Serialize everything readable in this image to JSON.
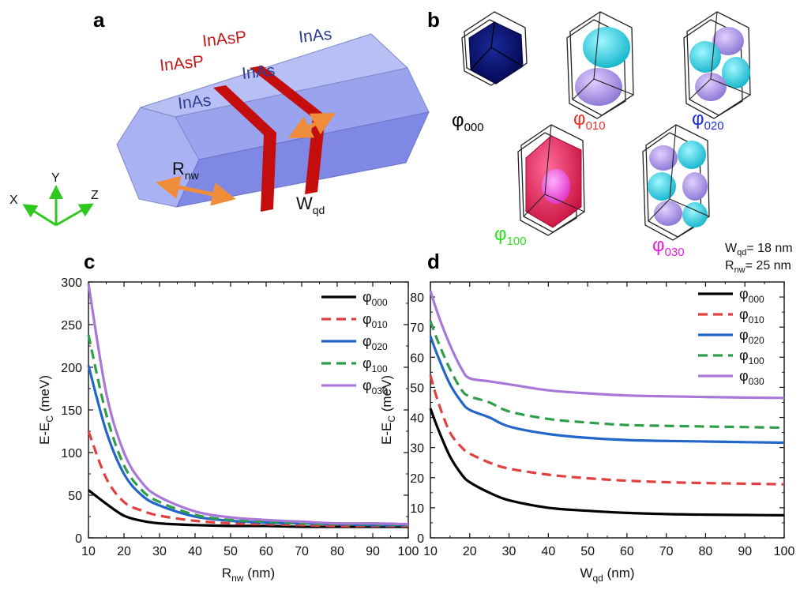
{
  "panels": {
    "a": {
      "letter": "a",
      "layer_labels": [
        "InAsP",
        "InAsP",
        "InAs",
        "InAs",
        "InAs"
      ],
      "radius_symbol": "R",
      "radius_sub": "nw",
      "width_symbol": "W",
      "width_sub": "qd",
      "axes": {
        "x": "X",
        "y": "Y",
        "z": "Z"
      },
      "colors": {
        "inas_text": "#2e3d8f",
        "inasp_text": "#c41a1a",
        "band": "#c40d0d",
        "arrow": "#f08d3b",
        "triad": "#2fc81f"
      }
    },
    "b": {
      "letter": "b",
      "states": [
        {
          "symbol": "φ",
          "sub": "000",
          "color": "#000000"
        },
        {
          "symbol": "φ",
          "sub": "010",
          "color": "#e8302a"
        },
        {
          "symbol": "φ",
          "sub": "020",
          "color": "#1b2cd6"
        },
        {
          "symbol": "φ",
          "sub": "100",
          "color": "#2ee020"
        },
        {
          "symbol": "φ",
          "sub": "030",
          "color": "#e020d8"
        }
      ],
      "params": [
        {
          "symbol": "W",
          "sub": "qd",
          "value": "= 18 nm"
        },
        {
          "symbol": "R",
          "sub": "nw",
          "value": "= 25 nm"
        }
      ]
    },
    "c": {
      "letter": "c"
    },
    "d": {
      "letter": "d"
    }
  },
  "chart_data": [
    {
      "panel": "c",
      "type": "line",
      "xlabel": "R",
      "xlabel_sub": "nw",
      "xlabel_unit": "(nm)",
      "ylabel": "E-E",
      "ylabel_sub": "C",
      "ylabel_unit": "(meV)",
      "xlim": [
        10,
        100
      ],
      "ylim": [
        0,
        300
      ],
      "xticks": [
        10,
        20,
        30,
        40,
        50,
        60,
        70,
        80,
        90,
        100
      ],
      "yticks": [
        0,
        50,
        100,
        150,
        200,
        250,
        300
      ],
      "legend": "top-right",
      "series": [
        {
          "name": "φ",
          "sub": "000",
          "color": "#000000",
          "dash": "solid",
          "x": [
            10,
            15,
            20,
            25,
            30,
            40,
            50,
            60,
            70,
            80,
            90,
            100
          ],
          "y": [
            56,
            40,
            26,
            20,
            17,
            15,
            14,
            14,
            13,
            13,
            13,
            13
          ]
        },
        {
          "name": "φ",
          "sub": "010",
          "color": "#e04040",
          "dash": "dashed",
          "x": [
            10,
            15,
            20,
            25,
            30,
            40,
            50,
            60,
            70,
            80,
            90,
            100
          ],
          "y": [
            125,
            70,
            42,
            32,
            26,
            20,
            17,
            16,
            15,
            14,
            14,
            14
          ]
        },
        {
          "name": "φ",
          "sub": "020",
          "color": "#2166c8",
          "dash": "solid",
          "x": [
            10,
            15,
            20,
            25,
            30,
            40,
            50,
            60,
            70,
            80,
            90,
            100
          ],
          "y": [
            202,
            125,
            75,
            50,
            38,
            25,
            20,
            18,
            17,
            16,
            15,
            15
          ]
        },
        {
          "name": "φ",
          "sub": "100",
          "color": "#2e9e4a",
          "dash": "dashed",
          "x": [
            10,
            15,
            20,
            25,
            30,
            40,
            50,
            60,
            70,
            80,
            90,
            100
          ],
          "y": [
            238,
            145,
            85,
            56,
            42,
            27,
            21,
            19,
            17,
            16,
            16,
            15
          ]
        },
        {
          "name": "φ",
          "sub": "030",
          "color": "#a877d8",
          "dash": "solid",
          "x": [
            10,
            15,
            20,
            25,
            30,
            40,
            50,
            60,
            70,
            80,
            90,
            100
          ],
          "y": [
            298,
            170,
            100,
            65,
            48,
            31,
            24,
            21,
            19,
            17,
            17,
            16
          ]
        }
      ]
    },
    {
      "panel": "d",
      "type": "line",
      "xlabel": "W",
      "xlabel_sub": "qd",
      "xlabel_unit": "(nm)",
      "ylabel": "E-E",
      "ylabel_sub": "C",
      "ylabel_unit": "(meV)",
      "xlim": [
        10,
        100
      ],
      "ylim": [
        0,
        85
      ],
      "xticks": [
        10,
        20,
        30,
        40,
        50,
        60,
        70,
        80,
        90,
        100
      ],
      "yticks": [
        0,
        10,
        20,
        30,
        40,
        50,
        60,
        70,
        80
      ],
      "legend": "top-right",
      "series": [
        {
          "name": "φ",
          "sub": "000",
          "color": "#000000",
          "dash": "solid",
          "x": [
            10,
            12,
            15,
            18,
            20,
            25,
            30,
            40,
            50,
            60,
            70,
            80,
            90,
            100
          ],
          "y": [
            43,
            36,
            27,
            21,
            18.5,
            15,
            12.5,
            10,
            9,
            8.3,
            7.9,
            7.7,
            7.6,
            7.5
          ]
        },
        {
          "name": "φ",
          "sub": "010",
          "color": "#e04040",
          "dash": "dashed",
          "x": [
            10,
            12,
            15,
            18,
            20,
            25,
            30,
            40,
            50,
            60,
            70,
            80,
            90,
            100
          ],
          "y": [
            54,
            45,
            35,
            30,
            28,
            25,
            23,
            21,
            19.8,
            19,
            18.5,
            18.2,
            18,
            17.8
          ]
        },
        {
          "name": "φ",
          "sub": "020",
          "color": "#2166c8",
          "dash": "solid",
          "x": [
            10,
            12,
            15,
            18,
            20,
            25,
            30,
            40,
            50,
            60,
            70,
            80,
            90,
            100
          ],
          "y": [
            67,
            60,
            51,
            45,
            42.5,
            40,
            37,
            34.5,
            33.2,
            32.5,
            32.2,
            32,
            31.8,
            31.6
          ]
        },
        {
          "name": "φ",
          "sub": "100",
          "color": "#2e9e4a",
          "dash": "dashed",
          "x": [
            10,
            12,
            15,
            18,
            20,
            25,
            30,
            40,
            50,
            60,
            70,
            80,
            90,
            100
          ],
          "y": [
            72,
            65,
            56,
            49,
            47,
            45,
            42,
            39.5,
            38.3,
            37.5,
            37.2,
            37,
            36.8,
            36.6
          ]
        },
        {
          "name": "φ",
          "sub": "030",
          "color": "#a877d8",
          "dash": "solid",
          "x": [
            10,
            12,
            15,
            18,
            20,
            25,
            30,
            40,
            50,
            60,
            70,
            80,
            90,
            100
          ],
          "y": [
            82,
            74,
            64,
            56,
            53,
            52,
            51,
            49,
            48,
            47.3,
            47,
            46.8,
            46.6,
            46.5
          ]
        }
      ]
    }
  ]
}
